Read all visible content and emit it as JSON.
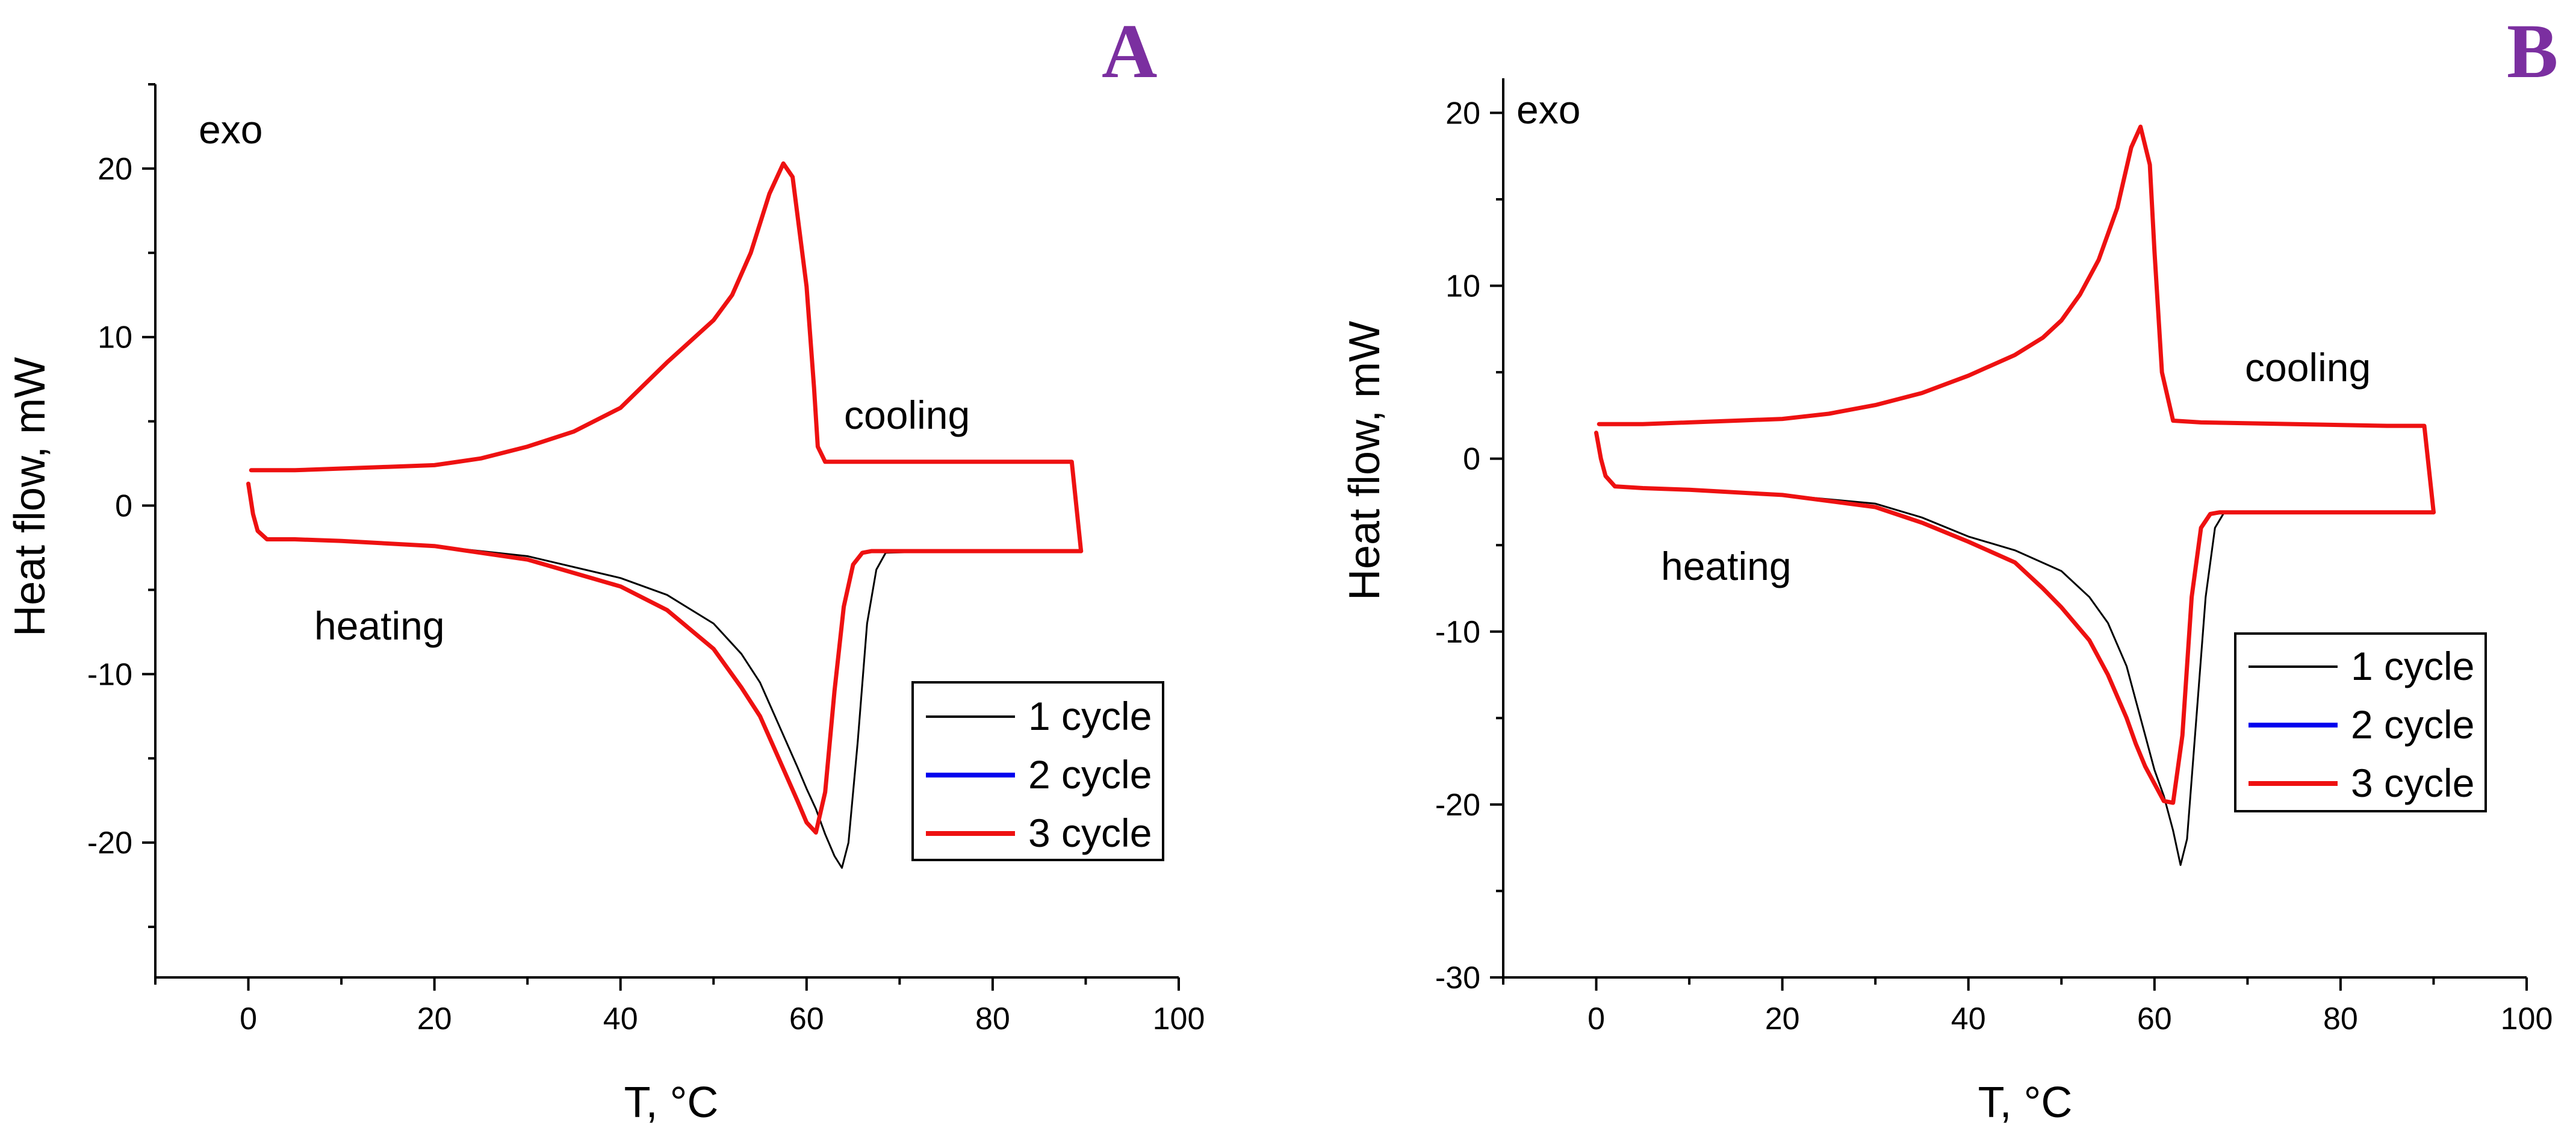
{
  "colors": {
    "cycle1": "#000000",
    "cycle2": "#0000ee",
    "cycle3": "#ee1111",
    "panel_letter": "#7b2fa0"
  },
  "chart_data": [
    {
      "panel": "A",
      "type": "line",
      "xlabel": "T, °C",
      "ylabel": "Heat flow, mW",
      "xlim": [
        -10,
        100
      ],
      "ylim": [
        -28,
        25
      ],
      "xticks": [
        0,
        20,
        40,
        60,
        80,
        100
      ],
      "yticks": [
        -20,
        -10,
        0,
        10,
        20
      ],
      "annotations": {
        "exo": "exo",
        "cooling": "cooling",
        "heating": "heating"
      },
      "legend": {
        "position": "bottom-right",
        "entries": [
          "1 cycle",
          "2 cycle",
          "3 cycle"
        ]
      },
      "series": [
        {
          "name": "1 cycle",
          "heating": {
            "x": [
              0,
              0.5,
              1,
              2,
              5,
              10,
              20,
              30,
              40,
              45,
              50,
              53,
              55,
              57,
              59,
              60,
              61,
              62,
              63,
              63.8,
              64.5,
              65.5,
              66.5,
              67.5,
              68.5,
              75,
              85,
              89.5
            ],
            "y": [
              1.3,
              -0.5,
              -1.5,
              -2,
              -2,
              -2.1,
              -2.4,
              -3,
              -4.3,
              -5.3,
              -7,
              -8.8,
              -10.5,
              -13,
              -15.5,
              -16.8,
              -18,
              -19.5,
              -20.8,
              -21.5,
              -20,
              -14,
              -7,
              -3.8,
              -2.8,
              -2.7,
              -2.7,
              -2.7
            ]
          },
          "cooling": {
            "x": [
              89.5,
              88.5,
              85,
              75,
              65,
              62,
              61.2,
              60.8,
              60,
              58.5,
              57.5,
              56,
              54,
              52,
              50,
              45,
              40,
              35,
              30,
              25,
              20,
              15,
              10,
              5,
              1,
              0.3
            ],
            "y": [
              -2.7,
              2.6,
              2.6,
              2.6,
              2.6,
              2.6,
              3.5,
              7,
              13,
              19.5,
              20.3,
              18.5,
              15,
              12.5,
              11,
              8.5,
              5.8,
              4.4,
              3.5,
              2.8,
              2.4,
              2.3,
              2.2,
              2.1,
              2.1,
              2.1
            ]
          }
        },
        {
          "name": "2 cycle",
          "heating": {
            "x": [
              0,
              0.5,
              1,
              2,
              5,
              10,
              20,
              30,
              40,
              45,
              50,
              53,
              55,
              57,
              59,
              60,
              61,
              62,
              63,
              64,
              65,
              66,
              67,
              68,
              75,
              85,
              89.5
            ],
            "y": [
              1.3,
              -0.5,
              -1.5,
              -2,
              -2,
              -2.1,
              -2.4,
              -3.2,
              -4.8,
              -6.2,
              -8.5,
              -10.8,
              -12.5,
              -15,
              -17.5,
              -18.8,
              -19.4,
              -17,
              -11,
              -6,
              -3.5,
              -2.8,
              -2.7,
              -2.7,
              -2.7,
              -2.7,
              -2.7
            ]
          },
          "cooling": {
            "x": [
              89.5,
              88.5,
              85,
              75,
              65,
              62,
              61.2,
              60.8,
              60,
              58.5,
              57.5,
              56,
              54,
              52,
              50,
              45,
              40,
              35,
              30,
              25,
              20,
              15,
              10,
              5,
              1,
              0.3
            ],
            "y": [
              -2.7,
              2.6,
              2.6,
              2.6,
              2.6,
              2.6,
              3.5,
              7,
              13,
              19.5,
              20.3,
              18.5,
              15,
              12.5,
              11,
              8.5,
              5.8,
              4.4,
              3.5,
              2.8,
              2.4,
              2.3,
              2.2,
              2.1,
              2.1,
              2.1
            ]
          }
        },
        {
          "name": "3 cycle",
          "heating": {
            "x": [
              0,
              0.5,
              1,
              2,
              5,
              10,
              20,
              30,
              40,
              45,
              50,
              53,
              55,
              57,
              59,
              60,
              61,
              62,
              63,
              64,
              65,
              66,
              67,
              68,
              75,
              85,
              89.5
            ],
            "y": [
              1.3,
              -0.5,
              -1.5,
              -2,
              -2,
              -2.1,
              -2.4,
              -3.2,
              -4.8,
              -6.2,
              -8.5,
              -10.8,
              -12.5,
              -15,
              -17.5,
              -18.8,
              -19.4,
              -17,
              -11,
              -6,
              -3.5,
              -2.8,
              -2.7,
              -2.7,
              -2.7,
              -2.7,
              -2.7
            ]
          },
          "cooling": {
            "x": [
              89.5,
              88.5,
              85,
              75,
              65,
              62,
              61.2,
              60.8,
              60,
              58.5,
              57.5,
              56,
              54,
              52,
              50,
              45,
              40,
              35,
              30,
              25,
              20,
              15,
              10,
              5,
              1,
              0.3
            ],
            "y": [
              -2.7,
              2.6,
              2.6,
              2.6,
              2.6,
              2.6,
              3.5,
              7,
              13,
              19.5,
              20.3,
              18.5,
              15,
              12.5,
              11,
              8.5,
              5.8,
              4.4,
              3.5,
              2.8,
              2.4,
              2.3,
              2.2,
              2.1,
              2.1,
              2.1
            ]
          }
        }
      ]
    },
    {
      "panel": "B",
      "type": "line",
      "xlabel": "T, °C",
      "ylabel": "Heat flow, mW",
      "xlim": [
        -10,
        100
      ],
      "ylim": [
        -30,
        22
      ],
      "xticks": [
        0,
        20,
        40,
        60,
        80,
        100
      ],
      "yticks": [
        -30,
        -20,
        -10,
        0,
        10,
        20
      ],
      "annotations": {
        "exo": "exo",
        "cooling": "cooling",
        "heating": "heating"
      },
      "legend": {
        "position": "bottom-right",
        "entries": [
          "1 cycle",
          "2 cycle",
          "3 cycle"
        ]
      },
      "series": [
        {
          "name": "1 cycle",
          "heating": {
            "x": [
              0,
              0.5,
              1,
              2,
              5,
              10,
              20,
              30,
              35,
              40,
              45,
              50,
              53,
              55,
              57,
              58,
              59,
              60,
              61,
              62,
              62.8,
              63.5,
              64.5,
              65.5,
              66.5,
              67.5,
              75,
              85,
              90
            ],
            "y": [
              1.5,
              0,
              -1,
              -1.6,
              -1.7,
              -1.8,
              -2.1,
              -2.6,
              -3.4,
              -4.5,
              -5.3,
              -6.5,
              -8,
              -9.5,
              -12,
              -14,
              -16,
              -18,
              -19.5,
              -21.5,
              -23.5,
              -22,
              -15,
              -8,
              -4,
              -3.1,
              -3.1,
              -3.1,
              -3.1
            ]
          },
          "cooling": {
            "x": [
              90,
              89,
              85,
              75,
              65,
              62,
              60.8,
              60,
              59.5,
              58.5,
              57.5,
              56,
              54,
              52,
              50,
              48,
              45,
              40,
              35,
              30,
              25,
              20,
              15,
              10,
              5,
              1,
              0.3
            ],
            "y": [
              -3.1,
              1.9,
              1.9,
              2,
              2.1,
              2.2,
              5,
              12,
              17,
              19.2,
              18,
              14.5,
              11.5,
              9.5,
              8,
              7,
              6,
              4.8,
              3.8,
              3.1,
              2.6,
              2.3,
              2.2,
              2.1,
              2,
              2,
              2
            ]
          }
        },
        {
          "name": "2 cycle",
          "heating": {
            "x": [
              0,
              0.5,
              1,
              2,
              5,
              10,
              20,
              30,
              35,
              40,
              45,
              48,
              50,
              53,
              55,
              57,
              58,
              59,
              60,
              61,
              62,
              63,
              64,
              65,
              66,
              67,
              75,
              85,
              90
            ],
            "y": [
              1.5,
              0,
              -1,
              -1.6,
              -1.7,
              -1.8,
              -2.1,
              -2.8,
              -3.7,
              -4.8,
              -6,
              -7.5,
              -8.6,
              -10.5,
              -12.5,
              -15,
              -16.5,
              -17.8,
              -18.8,
              -19.8,
              -19.9,
              -16,
              -8,
              -4,
              -3.2,
              -3.1,
              -3.1,
              -3.1,
              -3.1
            ]
          },
          "cooling": {
            "x": [
              90,
              89,
              85,
              75,
              65,
              62,
              60.8,
              60,
              59.5,
              58.5,
              57.5,
              56,
              54,
              52,
              50,
              48,
              45,
              40,
              35,
              30,
              25,
              20,
              15,
              10,
              5,
              1,
              0.3
            ],
            "y": [
              -3.1,
              1.9,
              1.9,
              2,
              2.1,
              2.2,
              5,
              12,
              17,
              19.2,
              18,
              14.5,
              11.5,
              9.5,
              8,
              7,
              6,
              4.8,
              3.8,
              3.1,
              2.6,
              2.3,
              2.2,
              2.1,
              2,
              2,
              2
            ]
          }
        },
        {
          "name": "3 cycle",
          "heating": {
            "x": [
              0,
              0.5,
              1,
              2,
              5,
              10,
              20,
              30,
              35,
              40,
              45,
              48,
              50,
              53,
              55,
              57,
              58,
              59,
              60,
              61,
              62,
              63,
              64,
              65,
              66,
              67,
              75,
              85,
              90
            ],
            "y": [
              1.5,
              0,
              -1,
              -1.6,
              -1.7,
              -1.8,
              -2.1,
              -2.8,
              -3.7,
              -4.8,
              -6,
              -7.5,
              -8.6,
              -10.5,
              -12.5,
              -15,
              -16.5,
              -17.8,
              -18.8,
              -19.8,
              -19.9,
              -16,
              -8,
              -4,
              -3.2,
              -3.1,
              -3.1,
              -3.1,
              -3.1
            ]
          },
          "cooling": {
            "x": [
              90,
              89,
              85,
              75,
              65,
              62,
              60.8,
              60,
              59.5,
              58.5,
              57.5,
              56,
              54,
              52,
              50,
              48,
              45,
              40,
              35,
              30,
              25,
              20,
              15,
              10,
              5,
              1,
              0.3
            ],
            "y": [
              -3.1,
              1.9,
              1.9,
              2,
              2.1,
              2.2,
              5,
              12,
              17,
              19.2,
              18,
              14.5,
              11.5,
              9.5,
              8,
              7,
              6,
              4.8,
              3.8,
              3.1,
              2.6,
              2.3,
              2.2,
              2.1,
              2,
              2,
              2
            ]
          }
        }
      ]
    }
  ]
}
